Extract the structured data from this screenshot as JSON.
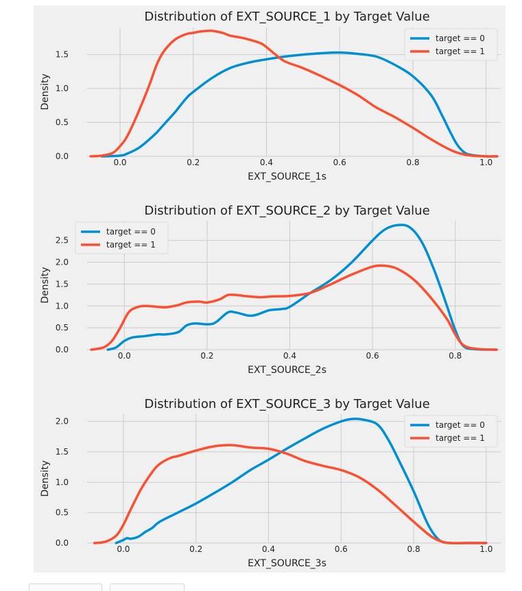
{
  "colors": {
    "series0": "#008fd5",
    "series1": "#fc4f30",
    "panel": "#f0f0f0",
    "grid": "#cbcbcb",
    "text": "#222222"
  },
  "chart_data": [
    {
      "type": "line",
      "title": "Distribution of EXT_SOURCE_1 by Target Value",
      "xlabel": "EXT_SOURCE_1s",
      "ylabel": "Density",
      "xlim": [
        -0.09,
        1.04
      ],
      "ylim": [
        0,
        1.9
      ],
      "xticks": [
        0.0,
        0.2,
        0.4,
        0.6,
        0.8,
        1.0
      ],
      "xtick_labels": [
        "0.0",
        "0.2",
        "0.4",
        "0.6",
        "0.8",
        "1.0"
      ],
      "yticks": [
        0.0,
        0.5,
        1.0,
        1.5
      ],
      "ytick_labels": [
        "0.0",
        "0.5",
        "1.0",
        "1.5"
      ],
      "grid": true,
      "legend": "top-right",
      "series": [
        {
          "name": "target == 0",
          "x": [
            -0.05,
            0.0,
            0.02,
            0.05,
            0.08,
            0.1,
            0.12,
            0.15,
            0.18,
            0.2,
            0.25,
            0.3,
            0.35,
            0.4,
            0.45,
            0.5,
            0.55,
            0.6,
            0.65,
            0.7,
            0.75,
            0.8,
            0.85,
            0.88,
            0.9,
            0.92,
            0.94,
            0.96,
            1.0,
            1.03
          ],
          "y": [
            0.0,
            0.01,
            0.04,
            0.12,
            0.25,
            0.35,
            0.47,
            0.65,
            0.85,
            0.95,
            1.15,
            1.3,
            1.38,
            1.43,
            1.47,
            1.5,
            1.52,
            1.53,
            1.51,
            1.47,
            1.35,
            1.18,
            0.9,
            0.6,
            0.38,
            0.18,
            0.06,
            0.02,
            0.0,
            0.0
          ]
        },
        {
          "name": "target == 1",
          "x": [
            -0.08,
            -0.05,
            -0.02,
            0.0,
            0.02,
            0.05,
            0.08,
            0.1,
            0.12,
            0.15,
            0.18,
            0.2,
            0.22,
            0.25,
            0.28,
            0.3,
            0.33,
            0.36,
            0.39,
            0.42,
            0.45,
            0.5,
            0.55,
            0.6,
            0.65,
            0.7,
            0.75,
            0.8,
            0.85,
            0.9,
            0.93,
            0.96,
            1.0,
            1.03
          ],
          "y": [
            0.0,
            0.01,
            0.05,
            0.15,
            0.3,
            0.65,
            1.05,
            1.35,
            1.55,
            1.72,
            1.8,
            1.82,
            1.84,
            1.85,
            1.82,
            1.78,
            1.75,
            1.71,
            1.65,
            1.52,
            1.4,
            1.3,
            1.18,
            1.05,
            0.9,
            0.72,
            0.58,
            0.42,
            0.25,
            0.1,
            0.04,
            0.01,
            0.0,
            0.0
          ]
        }
      ]
    },
    {
      "type": "line",
      "title": "Distribution of EXT_SOURCE_2 by Target Value",
      "xlabel": "EXT_SOURCE_2s",
      "ylabel": "Density",
      "xlim": [
        -0.09,
        0.91
      ],
      "ylim": [
        0,
        2.95
      ],
      "xticks": [
        0.0,
        0.2,
        0.4,
        0.6,
        0.8
      ],
      "xtick_labels": [
        "0.0",
        "0.2",
        "0.4",
        "0.6",
        "0.8"
      ],
      "yticks": [
        0.0,
        0.5,
        1.0,
        1.5,
        2.0,
        2.5
      ],
      "ytick_labels": [
        "0.0",
        "0.5",
        "1.0",
        "1.5",
        "2.0",
        "2.5"
      ],
      "grid": true,
      "legend": "top-left",
      "series": [
        {
          "name": "target == 0",
          "x": [
            -0.04,
            -0.02,
            0.0,
            0.02,
            0.05,
            0.08,
            0.1,
            0.13,
            0.15,
            0.17,
            0.2,
            0.22,
            0.25,
            0.27,
            0.3,
            0.32,
            0.35,
            0.38,
            0.4,
            0.45,
            0.5,
            0.55,
            0.6,
            0.63,
            0.66,
            0.69,
            0.72,
            0.75,
            0.78,
            0.8,
            0.82,
            0.85,
            0.9
          ],
          "y": [
            0.0,
            0.05,
            0.2,
            0.28,
            0.31,
            0.35,
            0.35,
            0.4,
            0.55,
            0.6,
            0.58,
            0.62,
            0.85,
            0.85,
            0.78,
            0.8,
            0.9,
            0.93,
            0.98,
            1.3,
            1.6,
            2.0,
            2.5,
            2.75,
            2.85,
            2.8,
            2.45,
            1.8,
            1.0,
            0.45,
            0.08,
            0.01,
            0.0
          ]
        },
        {
          "name": "target == 1",
          "x": [
            -0.08,
            -0.05,
            -0.03,
            -0.01,
            0.01,
            0.03,
            0.05,
            0.08,
            0.1,
            0.13,
            0.15,
            0.18,
            0.2,
            0.23,
            0.25,
            0.27,
            0.3,
            0.33,
            0.36,
            0.4,
            0.45,
            0.5,
            0.55,
            0.6,
            0.63,
            0.66,
            0.7,
            0.74,
            0.78,
            0.8,
            0.82,
            0.85,
            0.9
          ],
          "y": [
            0.0,
            0.05,
            0.2,
            0.5,
            0.85,
            0.97,
            1.0,
            0.98,
            0.97,
            1.02,
            1.08,
            1.1,
            1.08,
            1.15,
            1.25,
            1.25,
            1.22,
            1.2,
            1.22,
            1.23,
            1.3,
            1.5,
            1.72,
            1.9,
            1.92,
            1.85,
            1.6,
            1.2,
            0.7,
            0.35,
            0.1,
            0.02,
            0.0
          ]
        }
      ]
    },
    {
      "type": "line",
      "title": "Distribution of EXT_SOURCE_3 by Target Value",
      "xlabel": "EXT_SOURCE_3s",
      "ylabel": "Density",
      "xlim": [
        -0.1,
        1.04
      ],
      "ylim": [
        0,
        2.12
      ],
      "xticks": [
        0.0,
        0.2,
        0.4,
        0.6,
        0.8,
        1.0
      ],
      "xtick_labels": [
        "0.0",
        "0.2",
        "0.4",
        "0.6",
        "0.8",
        "1.0"
      ],
      "yticks": [
        0.0,
        0.5,
        1.0,
        1.5,
        2.0
      ],
      "ytick_labels": [
        "0.0",
        "0.5",
        "1.0",
        "1.5",
        "2.0"
      ],
      "grid": true,
      "legend": "top-right",
      "series": [
        {
          "name": "target == 0",
          "x": [
            -0.02,
            0.0,
            0.01,
            0.02,
            0.04,
            0.06,
            0.08,
            0.1,
            0.15,
            0.2,
            0.25,
            0.3,
            0.35,
            0.4,
            0.45,
            0.5,
            0.55,
            0.6,
            0.63,
            0.66,
            0.7,
            0.73,
            0.76,
            0.8,
            0.84,
            0.87,
            0.9,
            0.95,
            1.0
          ],
          "y": [
            0.0,
            0.05,
            0.08,
            0.07,
            0.1,
            0.18,
            0.25,
            0.35,
            0.5,
            0.65,
            0.82,
            1.0,
            1.2,
            1.37,
            1.55,
            1.72,
            1.88,
            2.0,
            2.04,
            2.03,
            1.95,
            1.7,
            1.35,
            0.85,
            0.3,
            0.05,
            0.0,
            0.0,
            0.0
          ]
        },
        {
          "name": "target == 1",
          "x": [
            -0.08,
            -0.05,
            -0.02,
            0.0,
            0.02,
            0.05,
            0.08,
            0.1,
            0.13,
            0.15,
            0.2,
            0.25,
            0.3,
            0.35,
            0.4,
            0.45,
            0.5,
            0.55,
            0.6,
            0.65,
            0.7,
            0.75,
            0.8,
            0.85,
            0.88,
            0.9,
            0.95,
            1.0
          ],
          "y": [
            0.0,
            0.02,
            0.12,
            0.3,
            0.55,
            0.9,
            1.17,
            1.3,
            1.4,
            1.43,
            1.52,
            1.59,
            1.61,
            1.57,
            1.55,
            1.47,
            1.35,
            1.27,
            1.2,
            1.08,
            0.88,
            0.62,
            0.35,
            0.1,
            0.02,
            0.0,
            0.0,
            0.0
          ]
        }
      ]
    }
  ]
}
